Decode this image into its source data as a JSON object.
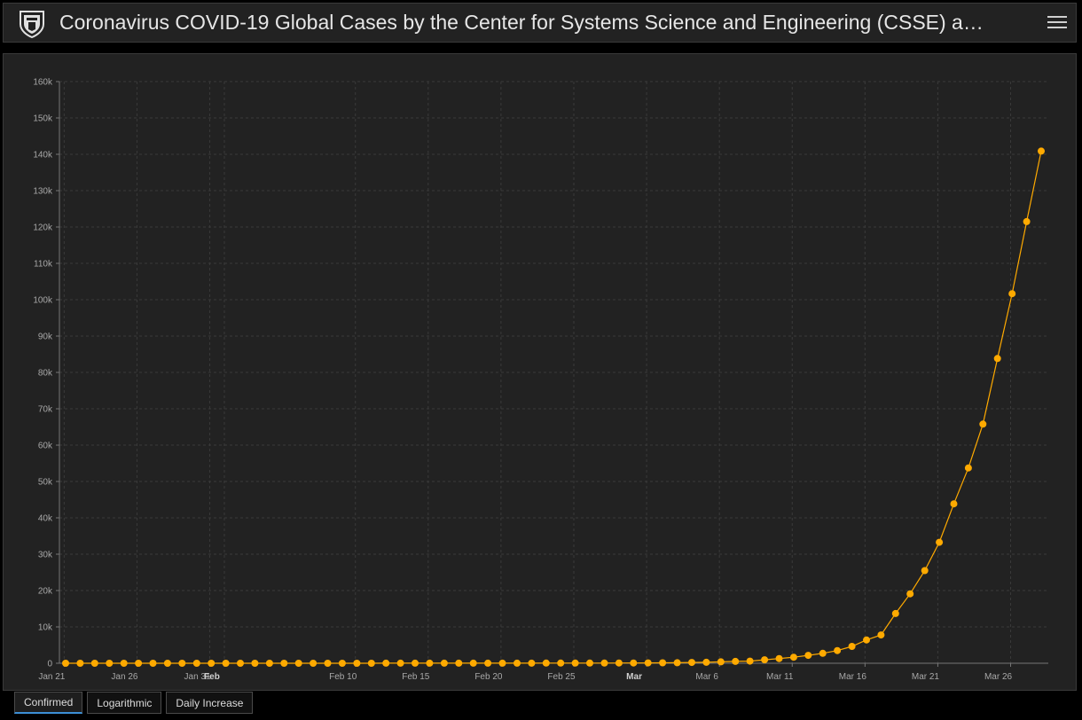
{
  "header": {
    "title": "Coronavirus COVID-19 Global Cases by the Center for Systems Science and Engineering (CSSE) a…",
    "menu_icon": "hamburger-menu-icon",
    "logo_icon": "university-shield-icon"
  },
  "tabs": [
    {
      "label": "Confirmed",
      "active": true
    },
    {
      "label": "Logarithmic",
      "active": false
    },
    {
      "label": "Daily Increase",
      "active": false
    }
  ],
  "colors": {
    "series": "#ffaa00",
    "background": "#222222",
    "grid": "#3a3a3a",
    "active_tab_underline": "#3d8fd6"
  },
  "chart_data": {
    "type": "line",
    "title": "",
    "xlabel": "",
    "ylabel": "",
    "ylim": [
      0,
      160000
    ],
    "y_ticks": [
      "0",
      "10k",
      "20k",
      "30k",
      "40k",
      "50k",
      "60k",
      "70k",
      "80k",
      "90k",
      "100k",
      "110k",
      "120k",
      "130k",
      "140k",
      "150k",
      "160k"
    ],
    "x_ticks": [
      {
        "label": "Jan 21",
        "bold": false
      },
      {
        "label": "Jan 26",
        "bold": false
      },
      {
        "label": "Jan 31",
        "bold": false
      },
      {
        "label": "Feb",
        "bold": true
      },
      {
        "label": "Feb 10",
        "bold": false
      },
      {
        "label": "Feb 15",
        "bold": false
      },
      {
        "label": "Feb 20",
        "bold": false
      },
      {
        "label": "Feb 25",
        "bold": false
      },
      {
        "label": "Mar",
        "bold": true
      },
      {
        "label": "Mar 6",
        "bold": false
      },
      {
        "label": "Mar 11",
        "bold": false
      },
      {
        "label": "Mar 16",
        "bold": false
      },
      {
        "label": "Mar 21",
        "bold": false
      },
      {
        "label": "Mar 26",
        "bold": false
      }
    ],
    "grid": true,
    "series": [
      {
        "start_date": "Jan 22",
        "values": [
          1,
          1,
          2,
          2,
          5,
          5,
          5,
          5,
          5,
          7,
          8,
          8,
          11,
          11,
          11,
          11,
          11,
          11,
          11,
          11,
          12,
          12,
          13,
          13,
          13,
          13,
          13,
          13,
          13,
          13,
          15,
          15,
          15,
          51,
          51,
          57,
          58,
          60,
          68,
          74,
          98,
          118,
          149,
          217,
          262,
          402,
          518,
          583,
          959,
          1281,
          1663,
          2179,
          2727,
          3499,
          4632,
          6421,
          7786,
          13680,
          19101,
          25493,
          33276,
          43847,
          53740,
          65778,
          83836,
          101657,
          121478,
          140886
        ]
      }
    ]
  }
}
